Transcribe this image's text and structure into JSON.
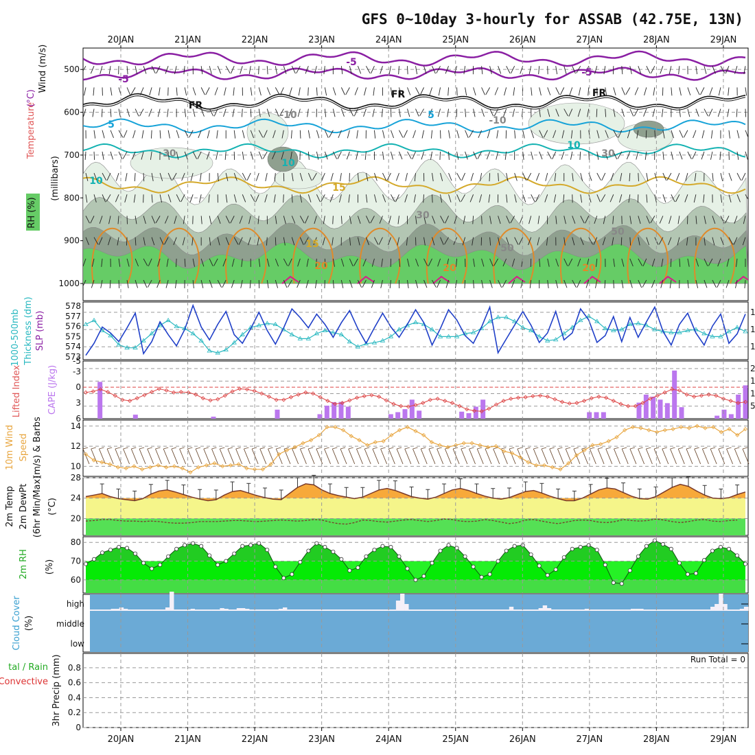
{
  "title": "GFS 0~10day 3-hourly for ASSAB (42.75E, 13N)",
  "dates": [
    "20JAN",
    "21JAN",
    "22JAN",
    "23JAN",
    "24JAN",
    "25JAN",
    "26JAN",
    "27JAN",
    "28JAN",
    "29JAN"
  ],
  "colors": {
    "purple": "#8a1fa3",
    "black": "#111111",
    "cyan": "#17a3d8",
    "teal": "#14b2b2",
    "gold": "#d4a92a",
    "orange": "#e08a2a",
    "magenta": "#d81c8c",
    "rhLight": "#e6f1e6",
    "rhMid": "#b3c6b3",
    "rhDark": "#8fa08f",
    "rhGreen": "#66cc66",
    "slp": "#1f3fc8",
    "thick": "#28b8c0",
    "cape": "#bb77ee",
    "li": "#dd4444",
    "wind10": "#e8a640",
    "tempFill": "#f7a93a",
    "dewFill": "#55e055",
    "midYellow": "#f5f58a",
    "rhFill": "#22cc22",
    "rhFill2": "#00ee00",
    "cloud": "#6baad6",
    "cloudClear": "#f4f0f8"
  },
  "chart_data": [
    {
      "panel": "upper_air",
      "type": "contour",
      "ylabels": [
        "Wind (m/s)",
        "Temperature (°C)",
        "RH (%)",
        "(millibars)"
      ],
      "yticks": [
        500,
        600,
        700,
        800,
        900,
        1000
      ],
      "ylim": [
        450,
        1040
      ],
      "contour_labels": [
        "-5",
        "-5",
        "-5",
        "FR",
        "FR",
        "FR",
        "5",
        "5",
        "10",
        "10",
        "10",
        "15",
        "15",
        "-10",
        "-10",
        "-30",
        "30",
        "30",
        "50",
        "50",
        "20",
        "20",
        "20"
      ],
      "isotherms": [
        {
          "label": "-10",
          "level": 475
        },
        {
          "label": "-5",
          "level": 510
        },
        {
          "label": "FR",
          "level": 575
        },
        {
          "label": "5",
          "level": 632
        },
        {
          "label": "10",
          "level": 690
        },
        {
          "label": "15",
          "level": 770
        }
      ]
    },
    {
      "panel": "slp_thickness",
      "type": "line",
      "ylabel_left": "1000-500mb Thickness (dm)",
      "ylabel_right": "SLP (mb)",
      "yticks_left": [
        573,
        574,
        575,
        576,
        577,
        578
      ],
      "yticks_right": [
        1012,
        1014,
        1016
      ],
      "ylim_left": [
        573,
        578
      ],
      "ylim_right": [
        1010.5,
        1017.2
      ],
      "series": [
        {
          "name": "SLP",
          "values": [
            1011,
            1012.4,
            1014.3,
            1013.6,
            1012.6,
            1014.2,
            1015.9,
            1011.2,
            1012.6,
            1014.9,
            1013.4,
            1012.1,
            1014,
            1016.8,
            1014.3,
            1012.8,
            1014.6,
            1016.1,
            1013.4,
            1012.4,
            1014.1,
            1016,
            1013.9,
            1012.3,
            1014.2,
            1016.4,
            1015.4,
            1014.2,
            1015.8,
            1014.6,
            1013.1,
            1014.8,
            1016.2,
            1014.1,
            1012.4,
            1014.2,
            1015.9,
            1014.3,
            1013.1,
            1014.6,
            1016.3,
            1014.8,
            1012.2,
            1014.1,
            1016.3,
            1015.1,
            1013.3,
            1012.4,
            1014.3,
            1016.6,
            1011.3,
            1012.9,
            1014.5,
            1016.1,
            1014.5,
            1012.5,
            1013.6,
            1016.1,
            1012.8,
            1013.6,
            1016.4,
            1015.1,
            1012.5,
            1013.3,
            1015.5,
            1012.6,
            1015.4,
            1013.1,
            1014.9,
            1016.6,
            1013.8,
            1012.2,
            1014.6,
            1015.9,
            1013.6,
            1012.2,
            1014.4,
            1015.8,
            1012.4,
            1013.5,
            1015.8
          ]
        },
        {
          "name": "Thickness",
          "values": [
            576.2,
            576.6,
            575.6,
            575.1,
            574.2,
            573.9,
            573.9,
            574.6,
            575.3,
            576.1,
            576.6,
            576,
            575.8,
            575.3,
            574.6,
            573.6,
            573.4,
            573.7,
            574.4,
            575.2,
            575.9,
            576.1,
            576.3,
            576.2,
            575.7,
            575.2,
            574.8,
            574.8,
            575.3,
            575.6,
            575.4,
            575.2,
            574.5,
            574,
            574.3,
            574.4,
            574.6,
            575,
            575.7,
            576.1,
            576.4,
            576.2,
            575.7,
            575,
            575,
            575,
            575.3,
            575.4,
            575.8,
            576.5,
            576.9,
            576.9,
            576.5,
            575.9,
            575.6,
            575,
            574.6,
            574.7,
            575.3,
            575.9,
            576.6,
            577,
            576.5,
            575.8,
            575.6,
            575.7,
            576.2,
            576.3,
            576.1,
            575.7,
            575.5,
            575.4,
            575.4,
            575.6,
            575.7,
            575.3,
            575,
            575,
            575.5,
            575.9,
            575.5
          ]
        }
      ]
    },
    {
      "panel": "cape_li",
      "type": "bar",
      "ylabel_left": "Lifted Index",
      "ylabel_right": "CAPE (J/kg)",
      "yticks_left": [
        "-5",
        "-3",
        "0",
        "3",
        "6"
      ],
      "yticks_right": [
        5,
        10,
        15,
        20
      ],
      "ylim_left": [
        -5,
        6
      ],
      "ylim_right": [
        0,
        23
      ],
      "series": [
        {
          "name": "CAPE",
          "values": [
            0,
            0,
            14.7,
            0,
            0,
            0,
            0,
            1.6,
            0,
            0,
            0,
            0,
            0,
            0,
            0,
            0,
            0,
            0,
            0.8,
            0,
            0,
            0,
            0,
            0,
            0,
            0,
            0,
            3.6,
            0,
            0,
            0,
            0,
            0,
            1.8,
            5.2,
            6.6,
            6.7,
            4.8,
            0,
            0,
            0,
            0,
            0,
            1.8,
            2.6,
            3.8,
            7.6,
            3.2,
            0,
            0,
            0,
            0,
            0,
            2.8,
            2.2,
            4.8,
            7.6,
            0,
            0,
            0,
            0,
            0,
            0,
            0,
            0,
            0,
            0,
            0,
            0,
            0,
            0,
            2.6,
            2.6,
            2.6,
            0,
            0,
            0,
            0,
            6.4,
            9.6,
            8.8,
            7.6,
            6.2,
            19.2,
            4.6,
            0,
            0,
            0,
            0,
            1.2,
            3.6,
            1.8,
            9.6,
            13.3
          ]
        },
        {
          "name": "Lifted Index",
          "values": [
            1.0,
            0.8,
            0.4,
            0.9,
            1.6,
            2.4,
            2.6,
            2.1,
            1.5,
            0.9,
            0.3,
            0.6,
            1.0,
            0.9,
            1.0,
            1.4,
            2.1,
            2.5,
            2.3,
            1.6,
            0.8,
            0.3,
            0.4,
            0.7,
            1.2,
            1.8,
            2.4,
            2.4,
            1.9,
            1.4,
            1.0,
            1.2,
            1.9,
            2.6,
            3.2,
            3.0,
            2.5,
            2.0,
            1.7,
            1.5,
            1.8,
            2.5,
            3.2,
            3.6,
            3.7,
            3.4,
            3.0,
            2.4,
            2.2,
            2.6,
            3.0,
            3.6,
            4.2,
            4.5,
            4.6,
            4.1,
            3.3,
            2.6,
            2.2,
            2.0,
            1.9,
            1.7,
            1.6,
            1.8,
            2.3,
            2.8,
            3.1,
            3.0,
            2.6,
            2.1,
            1.8,
            2.0,
            2.6,
            3.2,
            3.6,
            3.6,
            3.0,
            2.2,
            1.6,
            1.0,
            0.4,
            0.6,
            1.4,
            1.8,
            1.6,
            1.4,
            1.6,
            2.2,
            2.6,
            3.0,
            2.8
          ]
        }
      ]
    },
    {
      "panel": "wind10m",
      "type": "line",
      "ylabel": "10m Wind Speed (m/s) & Barbs",
      "yticks": [
        10,
        12,
        14
      ],
      "ylim": [
        9.0,
        14.6
      ],
      "series": [
        {
          "name": "Wind speed",
          "values": [
            11.2,
            10.6,
            10.4,
            10.2,
            9.9,
            9.8,
            10.0,
            9.7,
            9.9,
            10.1,
            9.9,
            10.0,
            9.8,
            9.4,
            9.9,
            10.1,
            10.3,
            10.0,
            10.1,
            10.2,
            9.8,
            9.7,
            9.7,
            10.2,
            11.2,
            11.6,
            11.9,
            12.3,
            12.6,
            13.1,
            13.9,
            13.9,
            13.6,
            13.0,
            12.6,
            12.1,
            12.4,
            12.5,
            13.1,
            13.6,
            13.9,
            13.5,
            13.1,
            12.4,
            12.1,
            11.9,
            12.1,
            12.3,
            12.3,
            12.1,
            11.9,
            12.0,
            11.5,
            11.3,
            10.9,
            10.4,
            10.1,
            10.1,
            9.9,
            9.7,
            10.3,
            11.1,
            11.6,
            12.1,
            12.2,
            12.5,
            12.9,
            13.6,
            13.9,
            13.8,
            13.6,
            13.4,
            13.6,
            13.7,
            13.9,
            13.8,
            14.0,
            13.8,
            13.9,
            13.4,
            13.7,
            13.1,
            13.7
          ]
        }
      ]
    },
    {
      "panel": "temp2m",
      "type": "area",
      "ylabel": "2m Temp 2m DewPt (6hr Min/Max) (°C)",
      "yticks": [
        20,
        24,
        28
      ],
      "ylim": [
        16.7,
        28.0
      ],
      "series": [
        {
          "name": "2m Temp",
          "values": [
            24.3,
            24.6,
            24.9,
            24.3,
            23.9,
            23.7,
            23.5,
            23.9,
            24.8,
            25.4,
            25.6,
            25.2,
            24.7,
            24.2,
            23.8,
            23.5,
            23.7,
            24.6,
            25.3,
            25.5,
            25.0,
            24.5,
            24.1,
            23.8,
            23.7,
            24.9,
            26.1,
            26.8,
            26.6,
            25.6,
            24.9,
            24.5,
            24.2,
            23.9,
            24.2,
            24.9,
            25.6,
            25.9,
            25.5,
            24.9,
            24.3,
            24.0,
            23.8,
            24.2,
            24.9,
            25.6,
            25.9,
            25.5,
            24.9,
            24.4,
            24.0,
            23.8,
            24.1,
            24.7,
            25.3,
            25.5,
            25.0,
            24.4,
            23.9,
            23.5,
            23.5,
            24.0,
            24.8,
            25.6,
            26.0,
            25.8,
            25.1,
            24.4,
            23.9,
            23.8,
            24.3,
            25.2,
            26.1,
            26.7,
            26.3,
            25.4,
            24.6,
            24.0,
            23.9,
            24.1,
            24.7,
            25.2
          ]
        },
        {
          "name": "2m DewPt",
          "values": [
            19.5,
            19.6,
            19.8,
            19.8,
            19.6,
            19.5,
            19.5,
            19.4,
            19.5,
            19.4,
            19.2,
            19.1,
            19.1,
            19.2,
            19.4,
            19.4,
            19.4,
            19.5,
            19.6,
            19.6,
            19.5,
            19.4,
            19.5,
            19.6,
            19.7,
            19.6,
            19.5,
            19.6,
            19.8,
            19.7,
            19.3,
            19.0,
            18.9,
            19.2,
            19.7,
            19.6,
            19.4,
            19.3,
            19.5,
            19.7,
            19.8,
            19.6,
            19.4,
            19.6,
            19.9,
            19.8,
            19.5,
            19.4,
            19.5,
            19.8,
            19.6,
            19.3,
            19.0,
            19.2,
            19.7,
            19.8,
            19.5,
            19.2,
            19.0,
            19.3,
            19.6,
            19.7,
            19.6,
            19.3,
            19.2,
            19.4,
            19.8,
            19.6,
            19.5,
            19.6,
            19.9,
            19.7,
            19.4,
            19.2,
            19.4,
            19.7,
            19.8,
            19.5,
            19.4,
            19.6,
            19.7
          ]
        }
      ]
    },
    {
      "panel": "rh2m",
      "type": "area",
      "ylabel": "2m RH (%)",
      "yticks": [
        60,
        70,
        80
      ],
      "ylim": [
        53,
        83
      ],
      "series": [
        {
          "name": "2m RH",
          "values": [
            68.5,
            71.0,
            74.5,
            76.0,
            77.5,
            77.0,
            74.0,
            69.0,
            66.0,
            68.0,
            72.5,
            76.5,
            78.5,
            79.5,
            78.0,
            73.0,
            68.0,
            70.0,
            74.0,
            78.0,
            78.5,
            79.5,
            76.0,
            67.0,
            61.0,
            63.0,
            69.5,
            75.5,
            79.5,
            77.5,
            75.0,
            71.0,
            65.0,
            66.5,
            72.5,
            76.0,
            78.0,
            77.5,
            72.5,
            66.0,
            60.0,
            62.0,
            69.0,
            75.5,
            78.5,
            77.0,
            72.5,
            67.0,
            61.5,
            63.0,
            70.0,
            75.5,
            78.0,
            78.5,
            73.5,
            67.5,
            62.5,
            65.5,
            72.0,
            76.5,
            77.5,
            78.5,
            76.0,
            68.0,
            58.5,
            58.0,
            65.0,
            72.5,
            78.0,
            81.0,
            79.0,
            76.5,
            69.0,
            63.0,
            63.5,
            70.5,
            75.5,
            77.5,
            76.5,
            73.0,
            68.5
          ]
        }
      ]
    },
    {
      "panel": "cloud_cover",
      "type": "heatmap",
      "ylabel": "Cloud Cover (%)",
      "levels": [
        "high",
        "middle",
        "low"
      ],
      "high_cloud": [
        2,
        2,
        2,
        2,
        2,
        3,
        3,
        5,
        3,
        2,
        2,
        2,
        2,
        2,
        2,
        2,
        2,
        2,
        5,
        28,
        2,
        2,
        2,
        2,
        3,
        2,
        2,
        2,
        2,
        2,
        2,
        4,
        3,
        2,
        2,
        4,
        4,
        3,
        2,
        2,
        2,
        2,
        2,
        2,
        2,
        3,
        5,
        2,
        2,
        2,
        2,
        2,
        2,
        2,
        2,
        2,
        2,
        2,
        2,
        2,
        2,
        2,
        2,
        2,
        2,
        2,
        2,
        2,
        2,
        2,
        2,
        2,
        2,
        15,
        25,
        10,
        2,
        2,
        2,
        2,
        2,
        2,
        2,
        2,
        2,
        2,
        2,
        2,
        2,
        2,
        2,
        2,
        2,
        2,
        2,
        2,
        2,
        2,
        2,
        2,
        6,
        2,
        2,
        2,
        2,
        2,
        2,
        4,
        8,
        4,
        2,
        2,
        2,
        2,
        2,
        2,
        2,
        2,
        3,
        2,
        2,
        2,
        2,
        2,
        2,
        2,
        2,
        2,
        2,
        3,
        3,
        3,
        2,
        2,
        2,
        2,
        2,
        2,
        2,
        2,
        2,
        2,
        2,
        2,
        2,
        2,
        2,
        2,
        6,
        10,
        25,
        10,
        2,
        2,
        2,
        3,
        6
      ]
    },
    {
      "panel": "precip",
      "type": "bar",
      "ylabel": "Total / Rain Convective 3hr Precip (mm)",
      "yticks": [
        "0",
        "0.2",
        "0.4",
        "0.6",
        "0.8"
      ],
      "ylim": [
        0,
        1
      ],
      "run_total": "Run Total = 0"
    }
  ]
}
